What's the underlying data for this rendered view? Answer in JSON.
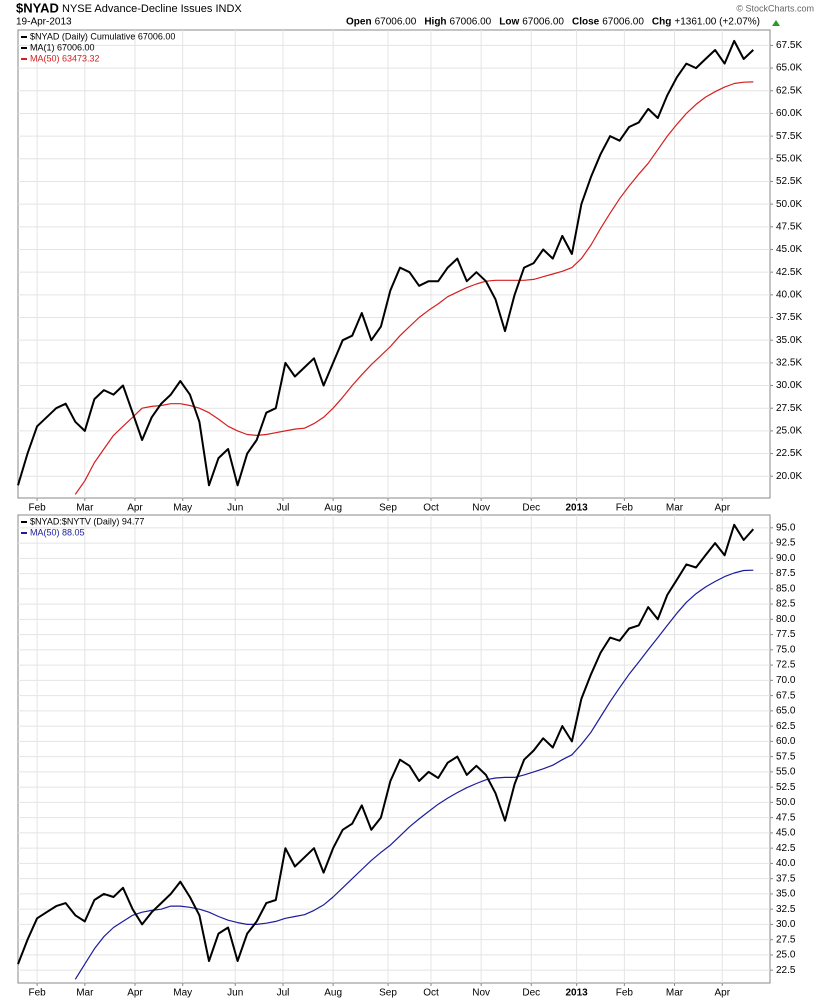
{
  "chart_data": [
    {
      "type": "line",
      "title": "$NYAD",
      "subtitle": "NYSE Advance-Decline Issues INDX",
      "date": "19-Apr-2013",
      "credit": "© StockCharts.com",
      "ohlc": [
        {
          "label": "Open",
          "value": "67006.00"
        },
        {
          "label": "High",
          "value": "67006.00"
        },
        {
          "label": "Low",
          "value": "67006.00"
        },
        {
          "label": "Close",
          "value": "67006.00"
        },
        {
          "label": "Chg",
          "value": "+1361.00 (+2.07%)"
        }
      ],
      "legend_notes": [
        "MA(1) 67006.00"
      ],
      "grid": true,
      "x": [
        0,
        4,
        8,
        12,
        16,
        20,
        24,
        28,
        32,
        36,
        40,
        44,
        48,
        52,
        56,
        60,
        64,
        68,
        72,
        76,
        80,
        84,
        88,
        92,
        96,
        100,
        104,
        108,
        112,
        116,
        120,
        124,
        128,
        132,
        136,
        140,
        144,
        148,
        152,
        156,
        160,
        164,
        168,
        172,
        176,
        180,
        184,
        188,
        192,
        196,
        200,
        204,
        208,
        212,
        216,
        220,
        224,
        228,
        232,
        236,
        240,
        244,
        248,
        252,
        256,
        260,
        264,
        268,
        272,
        276,
        280,
        284,
        288,
        292,
        296,
        300,
        304,
        308
      ],
      "xlim": [
        0,
        315
      ],
      "xticks": [
        {
          "value": 8,
          "label": "Feb"
        },
        {
          "value": 28,
          "label": "Mar"
        },
        {
          "value": 49,
          "label": "Apr"
        },
        {
          "value": 69,
          "label": "May"
        },
        {
          "value": 91,
          "label": "Jun"
        },
        {
          "value": 111,
          "label": "Jul"
        },
        {
          "value": 132,
          "label": "Aug"
        },
        {
          "value": 155,
          "label": "Sep"
        },
        {
          "value": 173,
          "label": "Oct"
        },
        {
          "value": 194,
          "label": "Nov"
        },
        {
          "value": 215,
          "label": "Dec"
        },
        {
          "value": 234,
          "label": "2013"
        },
        {
          "value": 254,
          "label": "Feb"
        },
        {
          "value": 275,
          "label": "Mar"
        },
        {
          "value": 295,
          "label": "Apr"
        }
      ],
      "ylim": [
        17600,
        69200
      ],
      "yticks": [
        {
          "value": 20000,
          "label": "20.0K"
        },
        {
          "value": 22500,
          "label": "22.5K"
        },
        {
          "value": 25000,
          "label": "25.0K"
        },
        {
          "value": 27500,
          "label": "27.5K"
        },
        {
          "value": 30000,
          "label": "30.0K"
        },
        {
          "value": 32500,
          "label": "32.5K"
        },
        {
          "value": 35000,
          "label": "35.0K"
        },
        {
          "value": 37500,
          "label": "37.5K"
        },
        {
          "value": 40000,
          "label": "40.0K"
        },
        {
          "value": 42500,
          "label": "42.5K"
        },
        {
          "value": 45000,
          "label": "45.0K"
        },
        {
          "value": 47500,
          "label": "47.5K"
        },
        {
          "value": 50000,
          "label": "50.0K"
        },
        {
          "value": 52500,
          "label": "52.5K"
        },
        {
          "value": 55000,
          "label": "55.0K"
        },
        {
          "value": 57500,
          "label": "57.5K"
        },
        {
          "value": 60000,
          "label": "60.0K"
        },
        {
          "value": 62500,
          "label": "62.5K"
        },
        {
          "value": 65000,
          "label": "65.0K"
        },
        {
          "value": 67500,
          "label": "67.5K"
        }
      ],
      "series": [
        {
          "name": "$NYAD (Daily) Cumulative 67006.00",
          "color": "#000000",
          "values": [
            19000,
            22500,
            25500,
            26500,
            27500,
            28000,
            26000,
            25000,
            28500,
            29500,
            29000,
            30000,
            27000,
            24000,
            26500,
            28000,
            29000,
            30500,
            29000,
            26000,
            19000,
            22000,
            23000,
            19000,
            22500,
            24000,
            27000,
            27500,
            32500,
            31000,
            32000,
            33000,
            30000,
            32500,
            35000,
            35500,
            38000,
            35000,
            36500,
            40500,
            43000,
            42500,
            41000,
            41500,
            41500,
            43000,
            44000,
            41500,
            42500,
            41500,
            39500,
            36000,
            40000,
            43000,
            43500,
            45000,
            44000,
            46500,
            44500,
            50000,
            53000,
            55500,
            57500,
            57000,
            58500,
            59000,
            60500,
            59500,
            62000,
            64000,
            65500,
            65000,
            66000,
            67000,
            65500,
            68000,
            66000,
            67006
          ]
        },
        {
          "name": "MA(50) 63473.32",
          "color": "#d42020",
          "values": [
            null,
            null,
            null,
            null,
            null,
            null,
            18000,
            19500,
            21500,
            23000,
            24500,
            25500,
            26500,
            27500,
            27700,
            27800,
            28000,
            28000,
            27800,
            27500,
            27000,
            26300,
            25500,
            25000,
            24600,
            24500,
            24600,
            24800,
            25000,
            25200,
            25300,
            25800,
            26500,
            27500,
            28700,
            30000,
            31200,
            32300,
            33300,
            34300,
            35500,
            36500,
            37500,
            38300,
            39000,
            39800,
            40300,
            40800,
            41200,
            41500,
            41600,
            41600,
            41600,
            41600,
            41700,
            42000,
            42300,
            42600,
            43000,
            44000,
            45500,
            47300,
            49000,
            50600,
            52000,
            53300,
            54500,
            56000,
            57500,
            58800,
            60000,
            61000,
            61800,
            62400,
            62900,
            63300,
            63450,
            63473
          ]
        }
      ]
    },
    {
      "type": "line",
      "grid": true,
      "x": [
        0,
        4,
        8,
        12,
        16,
        20,
        24,
        28,
        32,
        36,
        40,
        44,
        48,
        52,
        56,
        60,
        64,
        68,
        72,
        76,
        80,
        84,
        88,
        92,
        96,
        100,
        104,
        108,
        112,
        116,
        120,
        124,
        128,
        132,
        136,
        140,
        144,
        148,
        152,
        156,
        160,
        164,
        168,
        172,
        176,
        180,
        184,
        188,
        192,
        196,
        200,
        204,
        208,
        212,
        216,
        220,
        224,
        228,
        232,
        236,
        240,
        244,
        248,
        252,
        256,
        260,
        264,
        268,
        272,
        276,
        280,
        284,
        288,
        292,
        296,
        300,
        304,
        308
      ],
      "xlim": [
        0,
        315
      ],
      "xticks": [
        {
          "value": 8,
          "label": "Feb"
        },
        {
          "value": 28,
          "label": "Mar"
        },
        {
          "value": 49,
          "label": "Apr"
        },
        {
          "value": 69,
          "label": "May"
        },
        {
          "value": 91,
          "label": "Jun"
        },
        {
          "value": 111,
          "label": "Jul"
        },
        {
          "value": 132,
          "label": "Aug"
        },
        {
          "value": 155,
          "label": "Sep"
        },
        {
          "value": 173,
          "label": "Oct"
        },
        {
          "value": 194,
          "label": "Nov"
        },
        {
          "value": 215,
          "label": "Dec"
        },
        {
          "value": 234,
          "label": "2013"
        },
        {
          "value": 254,
          "label": "Feb"
        },
        {
          "value": 275,
          "label": "Mar"
        },
        {
          "value": 295,
          "label": "Apr"
        }
      ],
      "ylim": [
        20.4,
        97.1
      ],
      "yticks": [
        22.5,
        {
          "value": 25,
          "label": "25.0"
        },
        27.5,
        {
          "value": 30,
          "label": "30.0"
        },
        32.5,
        {
          "value": 35,
          "label": "35.0"
        },
        37.5,
        {
          "value": 40,
          "label": "40.0"
        },
        42.5,
        {
          "value": 45,
          "label": "45.0"
        },
        47.5,
        {
          "value": 50,
          "label": "50.0"
        },
        52.5,
        {
          "value": 55,
          "label": "55.0"
        },
        57.5,
        {
          "value": 60,
          "label": "60.0"
        },
        62.5,
        {
          "value": 65,
          "label": "65.0"
        },
        67.5,
        {
          "value": 70,
          "label": "70.0"
        },
        72.5,
        {
          "value": 75,
          "label": "75.0"
        },
        77.5,
        {
          "value": 80,
          "label": "80.0"
        },
        82.5,
        {
          "value": 85,
          "label": "85.0"
        },
        87.5,
        {
          "value": 90,
          "label": "90.0"
        },
        92.5,
        {
          "value": 95,
          "label": "95.0"
        }
      ],
      "series": [
        {
          "name": "$NYAD:$NYTV (Daily) 94.77",
          "color": "#000000",
          "values": [
            23.5,
            27.5,
            31,
            32,
            33,
            33.5,
            31.5,
            30.5,
            34,
            35,
            34.5,
            36,
            32.5,
            30,
            32,
            33.5,
            35,
            37,
            34.5,
            31.5,
            24,
            28.5,
            29.5,
            24,
            28.5,
            30.5,
            33.5,
            34,
            42.5,
            39.5,
            41,
            42.5,
            38.5,
            42.5,
            45.5,
            46.5,
            49.5,
            45.5,
            47.5,
            53.5,
            57,
            56,
            53.5,
            55,
            54,
            56.5,
            57.5,
            54.5,
            56,
            54.5,
            51.5,
            47,
            53,
            57,
            58.5,
            60.5,
            59,
            62.5,
            60,
            67,
            71,
            74.5,
            77,
            76.5,
            78.5,
            79,
            82,
            80,
            84,
            86.5,
            89,
            88.5,
            90.5,
            92.5,
            90.5,
            95.5,
            93,
            94.77
          ]
        },
        {
          "name": "MA(50) 88.05",
          "color": "#1c1c9c",
          "values": [
            null,
            null,
            null,
            null,
            null,
            null,
            21,
            23.5,
            26,
            28,
            29.5,
            30.5,
            31.5,
            32,
            32.3,
            32.5,
            33,
            33,
            32.8,
            32.5,
            32,
            31.3,
            30.7,
            30.3,
            30,
            30,
            30.2,
            30.5,
            31,
            31.3,
            31.6,
            32.3,
            33.2,
            34.5,
            36,
            37.5,
            39,
            40.5,
            41.8,
            43,
            44.5,
            46,
            47.3,
            48.5,
            49.7,
            50.7,
            51.6,
            52.4,
            53.1,
            53.7,
            54,
            54.1,
            54.1,
            54.5,
            55,
            55.5,
            56.1,
            57,
            57.8,
            59.5,
            61.5,
            64,
            66.5,
            68.8,
            71,
            73,
            75,
            77,
            79,
            81,
            82.8,
            84.2,
            85.3,
            86.2,
            87,
            87.6,
            88,
            88.05
          ]
        }
      ]
    }
  ]
}
